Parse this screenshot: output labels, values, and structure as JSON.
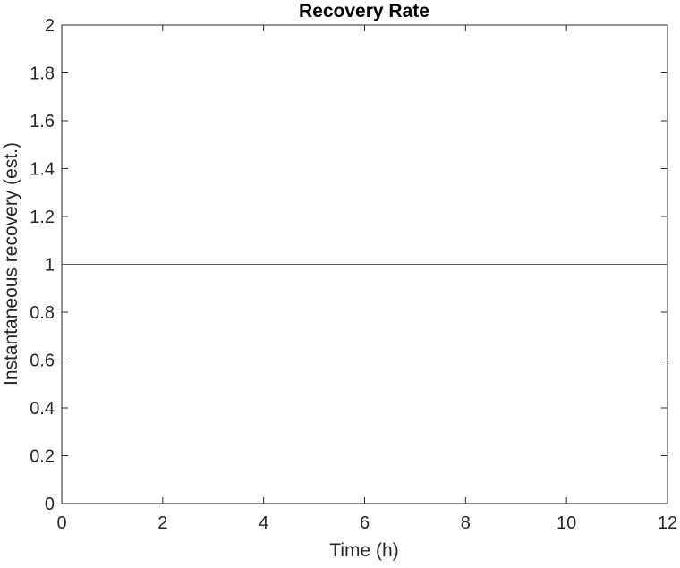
{
  "chart_data": {
    "type": "line",
    "title": "Recovery Rate",
    "xlabel": "Time (h)",
    "ylabel": "Instantaneous recovery (est.)",
    "xlim": [
      0,
      12
    ],
    "ylim": [
      0,
      2
    ],
    "xticks": [
      0,
      2,
      4,
      6,
      8,
      10,
      12
    ],
    "yticks": [
      0,
      0.2,
      0.4,
      0.6,
      0.8,
      1,
      1.2,
      1.4,
      1.6,
      1.8,
      2
    ],
    "xtick_labels": [
      "0",
      "2",
      "4",
      "6",
      "8",
      "10",
      "12"
    ],
    "ytick_labels": [
      "0",
      "0.2",
      "0.4",
      "0.6",
      "0.8",
      "1",
      "1.2",
      "1.4",
      "1.6",
      "1.8",
      "2"
    ],
    "grid": false,
    "box": true,
    "series": [
      {
        "color": "#0072BD",
        "x": [
          0,
          12
        ],
        "y": [
          1,
          1
        ]
      }
    ]
  }
}
